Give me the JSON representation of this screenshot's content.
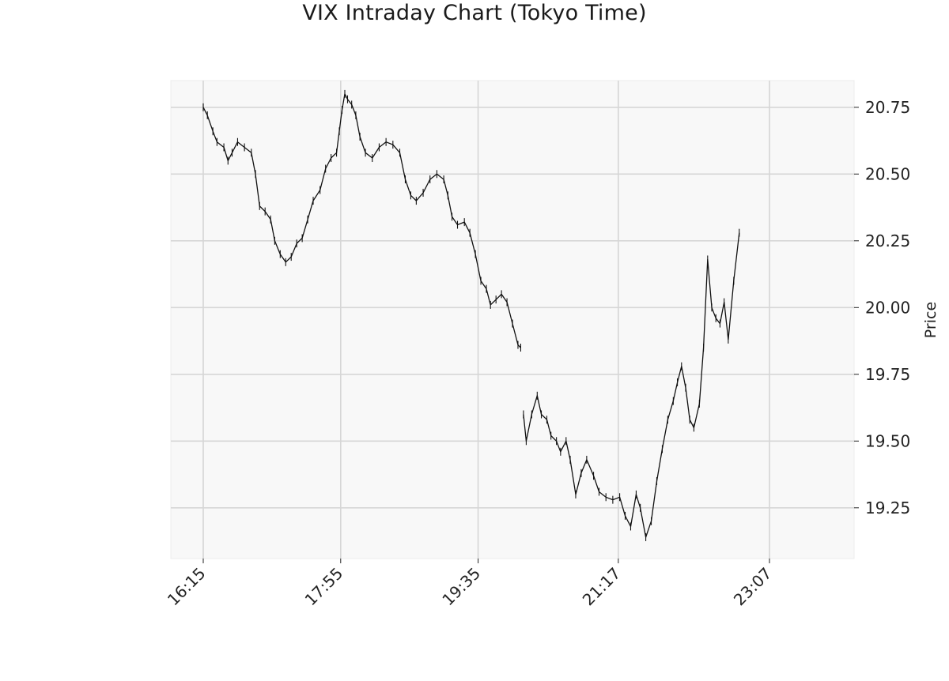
{
  "chart_data": {
    "type": "line",
    "title": "VIX Intraday Chart (Tokyo Time)",
    "xlabel": "",
    "ylabel": "Price",
    "x_tick_labels": [
      "16:15",
      "17:55",
      "19:35",
      "21:17",
      "23:07"
    ],
    "y_tick_labels": [
      "19.25",
      "19.50",
      "19.75",
      "20.00",
      "20.25",
      "20.50",
      "20.75"
    ],
    "y_ticks": [
      19.25,
      19.5,
      19.75,
      20.0,
      20.25,
      20.5,
      20.75
    ],
    "ylim": [
      19.06,
      20.85
    ],
    "y_axis_side": "right",
    "grid": true,
    "series": [
      {
        "segment": 1,
        "points": [
          [
            "16:15",
            20.75
          ],
          [
            "16:18",
            20.72
          ],
          [
            "16:22",
            20.66
          ],
          [
            "16:25",
            20.62
          ],
          [
            "16:30",
            20.6
          ],
          [
            "16:33",
            20.55
          ],
          [
            "16:36",
            20.58
          ],
          [
            "16:40",
            20.62
          ],
          [
            "16:45",
            20.6
          ],
          [
            "16:50",
            20.58
          ],
          [
            "16:53",
            20.5
          ],
          [
            "16:56",
            20.38
          ],
          [
            "17:00",
            20.36
          ],
          [
            "17:04",
            20.33
          ],
          [
            "17:07",
            20.25
          ],
          [
            "17:11",
            20.2
          ],
          [
            "17:15",
            20.17
          ],
          [
            "17:19",
            20.19
          ],
          [
            "17:23",
            20.24
          ],
          [
            "17:27",
            20.26
          ],
          [
            "17:31",
            20.33
          ],
          [
            "17:35",
            20.4
          ],
          [
            "17:40",
            20.44
          ],
          [
            "17:44",
            20.52
          ],
          [
            "17:48",
            20.56
          ],
          [
            "17:52",
            20.58
          ],
          [
            "17:54",
            20.66
          ],
          [
            "17:56",
            20.74
          ],
          [
            "17:58",
            20.8
          ],
          [
            "18:00",
            20.78
          ],
          [
            "18:03",
            20.76
          ],
          [
            "18:06",
            20.72
          ],
          [
            "18:09",
            20.64
          ],
          [
            "18:13",
            20.58
          ],
          [
            "18:18",
            20.56
          ],
          [
            "18:23",
            20.6
          ],
          [
            "18:28",
            20.62
          ],
          [
            "18:33",
            20.61
          ],
          [
            "18:38",
            20.58
          ],
          [
            "18:42",
            20.48
          ],
          [
            "18:46",
            20.42
          ],
          [
            "18:50",
            20.4
          ],
          [
            "18:55",
            20.43
          ],
          [
            "19:00",
            20.48
          ],
          [
            "19:05",
            20.5
          ],
          [
            "19:10",
            20.48
          ],
          [
            "19:13",
            20.42
          ],
          [
            "19:16",
            20.34
          ],
          [
            "19:20",
            20.31
          ],
          [
            "19:25",
            20.32
          ],
          [
            "19:29",
            20.28
          ],
          [
            "19:33",
            20.2
          ],
          [
            "19:37",
            20.1
          ],
          [
            "19:41",
            20.07
          ],
          [
            "19:44",
            20.01
          ],
          [
            "19:48",
            20.03
          ],
          [
            "19:52",
            20.05
          ],
          [
            "19:56",
            20.02
          ],
          [
            "20:00",
            19.94
          ],
          [
            "20:04",
            19.86
          ],
          [
            "20:06",
            19.85
          ]
        ]
      },
      {
        "segment": 2,
        "points": [
          [
            "20:08",
            19.6
          ],
          [
            "20:10",
            19.5
          ],
          [
            "20:14",
            19.6
          ],
          [
            "20:18",
            19.67
          ],
          [
            "20:21",
            19.6
          ],
          [
            "20:25",
            19.58
          ],
          [
            "20:28",
            19.52
          ],
          [
            "20:32",
            19.5
          ],
          [
            "20:35",
            19.46
          ],
          [
            "20:39",
            19.5
          ],
          [
            "20:42",
            19.43
          ],
          [
            "20:46",
            19.3
          ],
          [
            "20:50",
            19.38
          ],
          [
            "20:54",
            19.43
          ],
          [
            "20:59",
            19.37
          ],
          [
            "21:03",
            19.31
          ],
          [
            "21:08",
            19.29
          ],
          [
            "21:13",
            19.28
          ],
          [
            "21:18",
            19.29
          ],
          [
            "21:22",
            19.22
          ],
          [
            "21:26",
            19.18
          ],
          [
            "21:30",
            19.3
          ],
          [
            "21:33",
            19.25
          ],
          [
            "21:37",
            19.14
          ],
          [
            "21:41",
            19.2
          ],
          [
            "21:45",
            19.35
          ],
          [
            "21:49",
            19.47
          ],
          [
            "21:53",
            19.58
          ],
          [
            "21:57",
            19.65
          ],
          [
            "22:00",
            19.72
          ],
          [
            "22:03",
            19.78
          ],
          [
            "22:06",
            19.7
          ],
          [
            "22:09",
            19.58
          ],
          [
            "22:12",
            19.55
          ],
          [
            "22:16",
            19.64
          ],
          [
            "22:19",
            19.85
          ],
          [
            "22:22",
            20.18
          ],
          [
            "22:25",
            20.0
          ],
          [
            "22:28",
            19.96
          ],
          [
            "22:31",
            19.94
          ],
          [
            "22:34",
            20.02
          ],
          [
            "22:37",
            19.88
          ],
          [
            "22:41",
            20.1
          ],
          [
            "22:45",
            20.28
          ]
        ]
      }
    ]
  }
}
